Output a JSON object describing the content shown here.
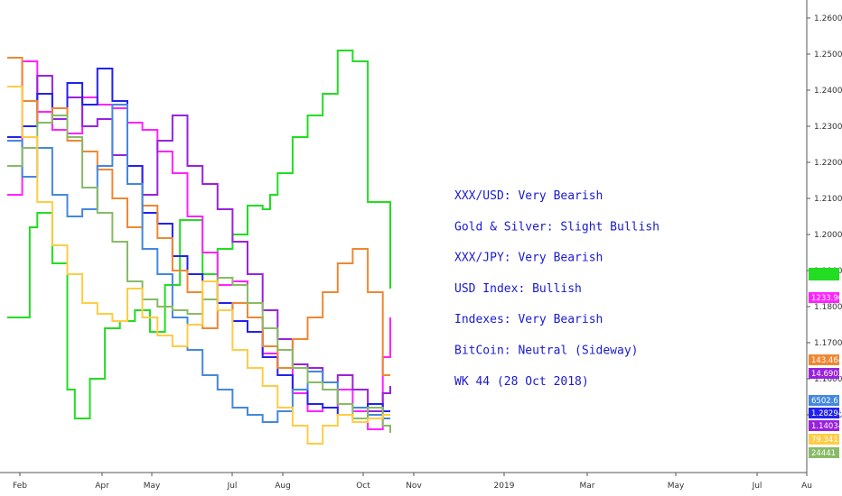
{
  "chart_data": {
    "type": "line",
    "title": "",
    "xlabel": "",
    "ylabel": "",
    "x_ticks": [
      "Feb",
      "Apr",
      "May",
      "Jul",
      "Aug",
      "Oct",
      "Nov",
      "2019",
      "Mar",
      "May",
      "Jul",
      "Au"
    ],
    "y_ticks": [
      "1.26000",
      "1.25000",
      "1.24000",
      "1.23000",
      "1.22000",
      "1.21000",
      "1.20000",
      "1.19000",
      "1.18000",
      "1.17000",
      "1.16000",
      "1.15000"
    ],
    "ylim": [
      1.142,
      1.262
    ],
    "grid": false,
    "legend": "none",
    "series": [
      {
        "color": "#22dd22",
        "values": [
          1.176,
          1.176,
          1.176,
          1.201,
          1.205,
          1.205,
          1.191,
          1.191,
          1.156,
          1.148,
          1.148,
          1.159,
          1.159,
          1.173,
          1.173,
          1.175,
          1.175,
          1.178,
          1.178,
          1.172,
          1.172,
          1.185,
          1.185,
          1.203,
          1.203,
          1.203,
          1.188,
          1.188,
          1.195,
          1.195,
          1.199,
          1.199,
          1.207,
          1.207,
          1.206,
          1.21,
          1.216,
          1.216,
          1.226,
          1.226,
          1.232,
          1.232,
          1.238,
          1.238,
          1.25,
          1.25,
          1.247,
          1.247,
          1.208,
          1.208,
          1.208,
          1.184
        ]
      },
      {
        "color": "#ff22ff",
        "values": [
          1.21,
          1.21,
          1.247,
          1.247,
          1.233,
          1.233,
          1.228,
          1.228,
          1.227,
          1.227,
          1.237,
          1.237,
          1.235,
          1.235,
          1.234,
          1.234,
          1.23,
          1.23,
          1.228,
          1.228,
          1.222,
          1.222,
          1.216,
          1.216,
          1.204,
          1.204,
          1.194,
          1.194,
          1.185,
          1.185,
          1.186,
          1.186,
          1.176,
          1.176,
          1.166,
          1.166,
          1.162,
          1.162,
          1.155,
          1.155,
          1.15,
          1.15,
          1.151,
          1.151,
          1.156,
          1.156,
          1.15,
          1.15,
          1.145,
          1.145,
          1.165,
          1.176
        ]
      },
      {
        "color": "#9922dd",
        "values": [
          1.24,
          1.24,
          1.236,
          1.236,
          1.243,
          1.243,
          1.231,
          1.231,
          1.237,
          1.237,
          1.229,
          1.229,
          1.231,
          1.231,
          1.221,
          1.221,
          1.218,
          1.218,
          1.21,
          1.21,
          1.225,
          1.225,
          1.232,
          1.232,
          1.218,
          1.218,
          1.213,
          1.213,
          1.206,
          1.206,
          1.197,
          1.197,
          1.188,
          1.188,
          1.178,
          1.178,
          1.17,
          1.17,
          1.163,
          1.163,
          1.162,
          1.162,
          1.158,
          1.158,
          1.16,
          1.16,
          1.156,
          1.156,
          1.15,
          1.15,
          1.155,
          1.157
        ]
      },
      {
        "color": "#2222ee",
        "values": [
          1.226,
          1.226,
          1.229,
          1.229,
          1.238,
          1.238,
          1.232,
          1.232,
          1.241,
          1.241,
          1.235,
          1.235,
          1.245,
          1.245,
          1.236,
          1.236,
          1.218,
          1.218,
          1.205,
          1.205,
          1.202,
          1.202,
          1.193,
          1.193,
          1.188,
          1.188,
          1.186,
          1.186,
          1.18,
          1.18,
          1.175,
          1.175,
          1.172,
          1.172,
          1.165,
          1.165,
          1.16,
          1.16,
          1.156,
          1.156,
          1.152,
          1.152,
          1.151,
          1.151,
          1.149,
          1.149,
          1.148,
          1.148,
          1.152,
          1.152,
          1.15,
          1.15
        ]
      },
      {
        "color": "#ee8833",
        "values": [
          1.248,
          1.248,
          1.236,
          1.236,
          1.23,
          1.23,
          1.234,
          1.234,
          1.225,
          1.225,
          1.222,
          1.222,
          1.217,
          1.217,
          1.209,
          1.209,
          1.201,
          1.201,
          1.207,
          1.207,
          1.198,
          1.198,
          1.189,
          1.189,
          1.183,
          1.183,
          1.173,
          1.173,
          1.178,
          1.178,
          1.18,
          1.18,
          1.176,
          1.176,
          1.168,
          1.168,
          1.162,
          1.162,
          1.17,
          1.17,
          1.176,
          1.176,
          1.183,
          1.183,
          1.191,
          1.191,
          1.195,
          1.195,
          1.183,
          1.183,
          1.16,
          1.16
        ]
      },
      {
        "color": "#4488dd",
        "values": [
          1.225,
          1.225,
          1.215,
          1.215,
          1.223,
          1.223,
          1.21,
          1.21,
          1.204,
          1.204,
          1.206,
          1.206,
          1.218,
          1.218,
          1.235,
          1.235,
          1.213,
          1.213,
          1.195,
          1.195,
          1.188,
          1.188,
          1.176,
          1.176,
          1.167,
          1.167,
          1.16,
          1.16,
          1.156,
          1.156,
          1.151,
          1.151,
          1.149,
          1.149,
          1.147,
          1.147,
          1.15,
          1.15,
          1.156,
          1.156,
          1.161,
          1.161,
          1.158,
          1.158,
          1.152,
          1.152,
          1.151,
          1.151,
          1.149,
          1.149,
          1.148,
          1.148
        ]
      },
      {
        "color": "#88bb66",
        "values": [
          1.218,
          1.218,
          1.223,
          1.223,
          1.23,
          1.23,
          1.232,
          1.232,
          1.226,
          1.226,
          1.212,
          1.212,
          1.205,
          1.205,
          1.197,
          1.197,
          1.186,
          1.186,
          1.181,
          1.181,
          1.179,
          1.179,
          1.178,
          1.178,
          1.177,
          1.177,
          1.181,
          1.181,
          1.187,
          1.187,
          1.185,
          1.185,
          1.18,
          1.18,
          1.173,
          1.173,
          1.167,
          1.167,
          1.162,
          1.162,
          1.158,
          1.158,
          1.156,
          1.156,
          1.152,
          1.152,
          1.148,
          1.148,
          1.151,
          1.151,
          1.146,
          1.144
        ]
      },
      {
        "color": "#ffcc44",
        "values": [
          1.24,
          1.24,
          1.226,
          1.226,
          1.208,
          1.208,
          1.196,
          1.196,
          1.188,
          1.188,
          1.18,
          1.18,
          1.177,
          1.177,
          1.175,
          1.175,
          1.184,
          1.184,
          1.176,
          1.176,
          1.171,
          1.171,
          1.168,
          1.168,
          1.174,
          1.174,
          1.186,
          1.186,
          1.178,
          1.178,
          1.167,
          1.167,
          1.162,
          1.162,
          1.157,
          1.157,
          1.151,
          1.151,
          1.146,
          1.146,
          1.141,
          1.141,
          1.146,
          1.146,
          1.149,
          1.149,
          1.147,
          1.147,
          1.148,
          1.148,
          1.149,
          1.149
        ]
      }
    ]
  },
  "price_tags": [
    {
      "text": "",
      "color": "#22dd22"
    },
    {
      "text": "1233.903",
      "color": "#ff22ff"
    },
    {
      "text": "143.464",
      "color": "#ee8833"
    },
    {
      "text": "14.69027",
      "color": "#9922dd"
    },
    {
      "text": "6502.6",
      "color": "#4488dd"
    },
    {
      "text": "1.28294",
      "color": "#2222ee"
    },
    {
      "text": "1.14034",
      "color": "#9922dd"
    },
    {
      "text": "79.341",
      "color": "#ffcc44"
    },
    {
      "text": "24441",
      "color": "#88bb66"
    }
  ],
  "notes": [
    "XXX/USD: Very Bearish",
    "Gold & Silver: Slight Bullish",
    "XXX/JPY: Very Bearish",
    "USD Index: Bullish",
    "Indexes: Very Bearish",
    "BitCoin: Neutral (Sideway)",
    "WK 44 (28 Oct 2018)"
  ]
}
